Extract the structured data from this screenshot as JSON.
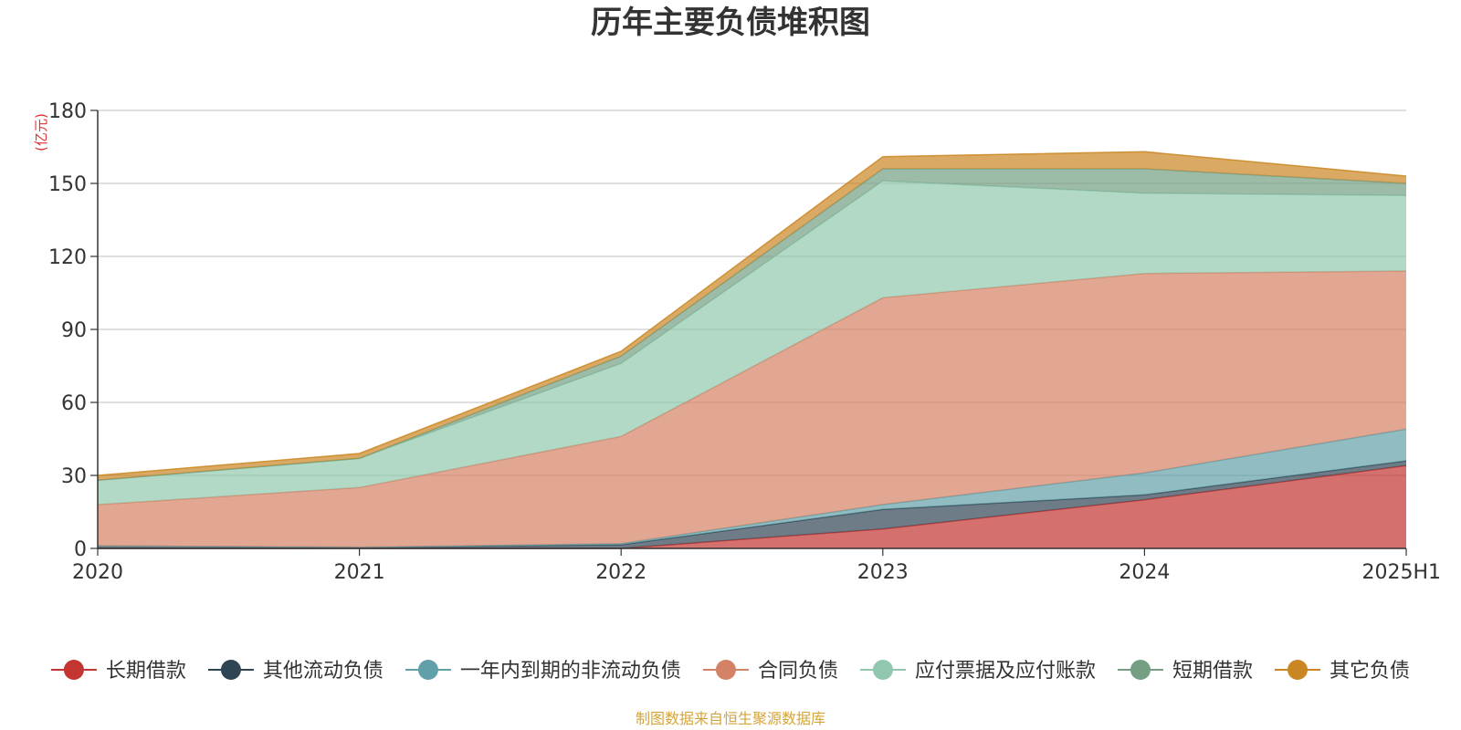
{
  "chart_data": {
    "type": "area",
    "stacked": true,
    "title": "历年主要负债堆积图",
    "unit_label": "(亿元)",
    "source_note": "制图数据来自恒生聚源数据库",
    "categories": [
      "2020",
      "2021",
      "2022",
      "2023",
      "2024",
      "2025H1"
    ],
    "ylim": [
      0,
      180
    ],
    "yticks": [
      0,
      30,
      60,
      90,
      120,
      150,
      180
    ],
    "grid": true,
    "legend_position": "bottom",
    "series": [
      {
        "name": "长期借款",
        "color": "#c23531",
        "values": [
          0,
          0,
          0,
          8,
          20,
          34
        ]
      },
      {
        "name": "其他流动负债",
        "color": "#2f4554",
        "values": [
          1,
          0.5,
          1.5,
          8,
          2,
          2
        ]
      },
      {
        "name": "一年内到期的非流动负债",
        "color": "#61a0a8",
        "values": [
          0,
          0,
          0.5,
          2,
          9,
          13
        ]
      },
      {
        "name": "合同负债",
        "color": "#d48265",
        "values": [
          17,
          24.5,
          44,
          85,
          82,
          65
        ]
      },
      {
        "name": "应付票据及应付账款",
        "color": "#91c7ae",
        "values": [
          10,
          12,
          30,
          48,
          33,
          31
        ]
      },
      {
        "name": "短期借款",
        "color": "#749f83",
        "values": [
          0,
          0,
          3,
          5,
          10,
          5
        ]
      },
      {
        "name": "其它负债",
        "color": "#ca8622",
        "values": [
          2,
          2,
          2,
          5,
          7,
          3
        ]
      }
    ]
  }
}
